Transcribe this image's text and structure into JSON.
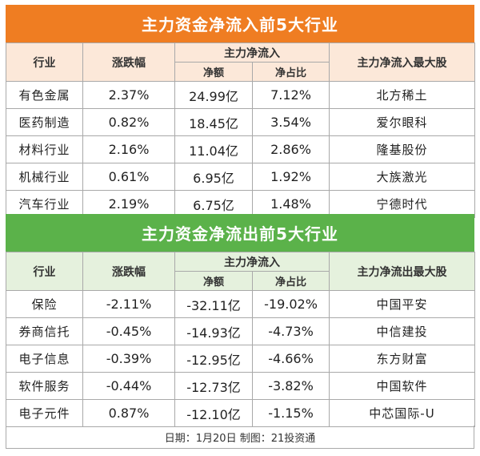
{
  "inflow": {
    "title": "主力资金净流入前5大行业",
    "headers": {
      "industry": "行业",
      "change": "涨跌幅",
      "netflow_group": "主力净流入",
      "net_amount": "净额",
      "net_ratio": "净占比",
      "top_stock": "主力净流入最大股"
    },
    "rows": [
      {
        "industry": "有色金属",
        "change": "2.37%",
        "amount": "24.99亿",
        "ratio": "7.12%",
        "stock": "北方稀土"
      },
      {
        "industry": "医药制造",
        "change": "0.82%",
        "amount": "18.45亿",
        "ratio": "3.54%",
        "stock": "爱尔眼科"
      },
      {
        "industry": "材料行业",
        "change": "2.16%",
        "amount": "11.04亿",
        "ratio": "2.86%",
        "stock": "隆基股份"
      },
      {
        "industry": "机械行业",
        "change": "0.61%",
        "amount": "6.95亿",
        "ratio": "1.92%",
        "stock": "大族激光"
      },
      {
        "industry": "汽车行业",
        "change": "2.19%",
        "amount": "6.75亿",
        "ratio": "1.48%",
        "stock": "宁德时代"
      }
    ]
  },
  "outflow": {
    "title": "主力资金净流出前5大行业",
    "headers": {
      "industry": "行业",
      "change": "涨跌幅",
      "netflow_group": "主力净流入",
      "net_amount": "净额",
      "net_ratio": "净占比",
      "top_stock": "主力净流出最大股"
    },
    "rows": [
      {
        "industry": "保险",
        "change": "-2.11%",
        "amount": "-32.11亿",
        "ratio": "-19.02%",
        "stock": "中国平安"
      },
      {
        "industry": "券商信托",
        "change": "-0.45%",
        "amount": "-14.93亿",
        "ratio": "-4.73%",
        "stock": "中信建投"
      },
      {
        "industry": "电子信息",
        "change": "-0.39%",
        "amount": "-12.95亿",
        "ratio": "-4.66%",
        "stock": "东方财富"
      },
      {
        "industry": "软件服务",
        "change": "-0.44%",
        "amount": "-12.73亿",
        "ratio": "-3.82%",
        "stock": "中国软件"
      },
      {
        "industry": "电子元件",
        "change": "0.87%",
        "amount": "-12.10亿",
        "ratio": "-1.15%",
        "stock": "中芯国际-U"
      }
    ]
  },
  "footer": "日期：1月20日 制图：21投资通",
  "colors": {
    "inflow_banner": "#ef7d22",
    "inflow_header": "#fce8d9",
    "outflow_banner": "#5bb24a",
    "outflow_header": "#e5f1dd",
    "grid": "#a9a9a9"
  }
}
